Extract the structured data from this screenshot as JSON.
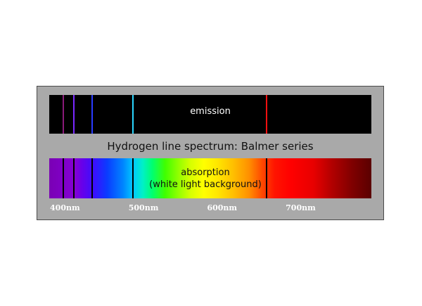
{
  "emission": {
    "label": "emission",
    "background": "#000000"
  },
  "title": "Hydrogen line spectrum: Balmer series",
  "absorption": {
    "label_line1": "absorption",
    "label_line2": "(white light background)",
    "line_color": "#000000"
  },
  "spectral_lines": [
    {
      "wavelength_nm": 397,
      "emission_color": "#8a1a7a"
    },
    {
      "wavelength_nm": 410,
      "emission_color": "#7a28ff"
    },
    {
      "wavelength_nm": 434,
      "emission_color": "#2a3cff"
    },
    {
      "wavelength_nm": 486,
      "emission_color": "#2ad6ff"
    },
    {
      "wavelength_nm": 656,
      "emission_color": "#ff1010"
    }
  ],
  "wavelength_scale": {
    "unit": "nm",
    "range_nm": [
      380,
      790
    ],
    "ticks": [
      {
        "value": 400,
        "label": "400nm"
      },
      {
        "value": 500,
        "label": "500nm"
      },
      {
        "value": 600,
        "label": "600nm"
      },
      {
        "value": 700,
        "label": "700nm"
      }
    ]
  }
}
